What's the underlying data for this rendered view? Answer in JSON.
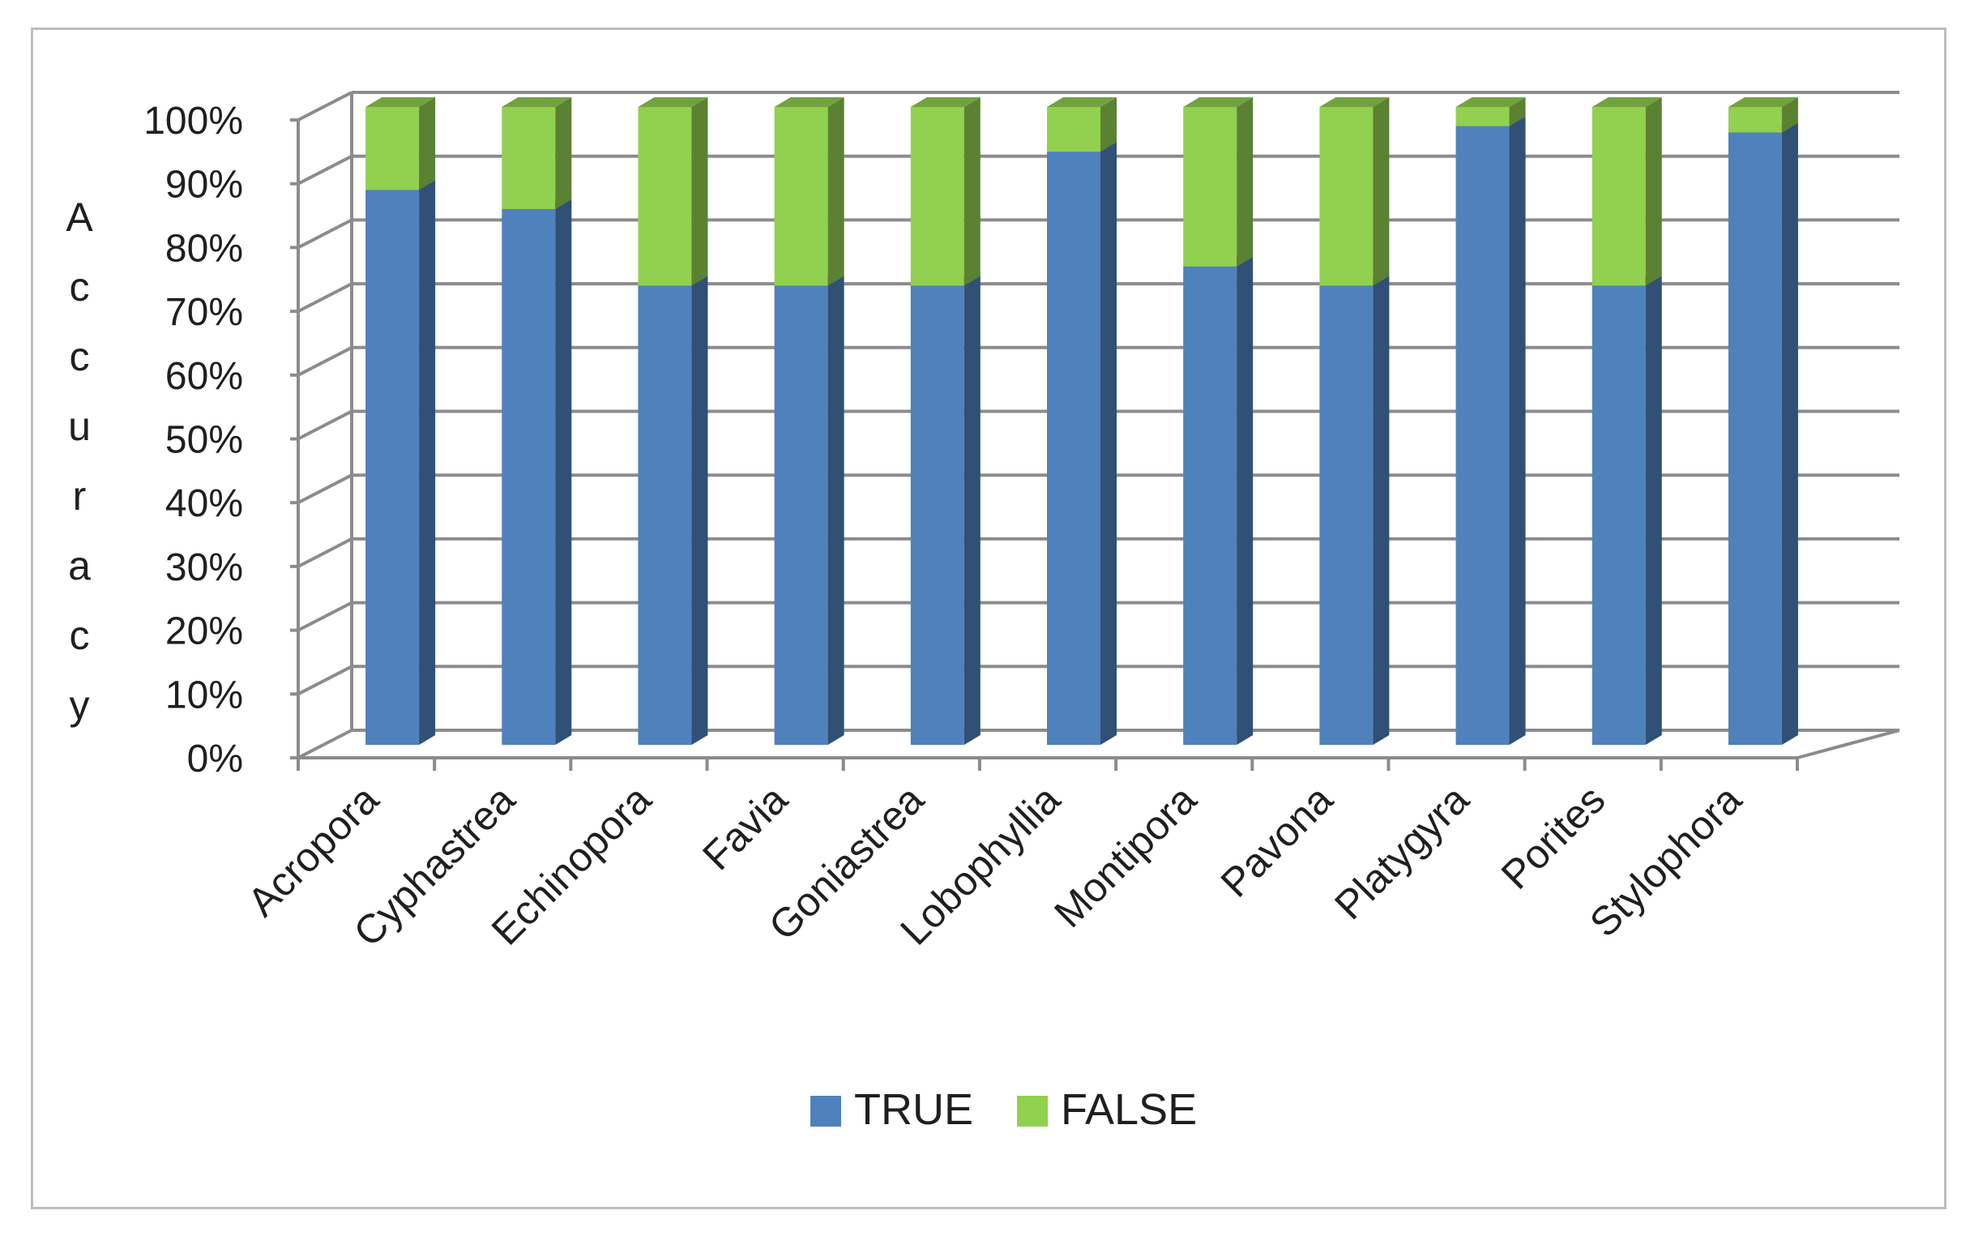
{
  "chart_data": {
    "type": "bar",
    "stacked": true,
    "three_d": true,
    "ylabel": "Accuracy",
    "ylim": [
      0,
      100
    ],
    "yticks": [
      "0%",
      "10%",
      "20%",
      "30%",
      "40%",
      "50%",
      "60%",
      "70%",
      "80%",
      "90%",
      "100%"
    ],
    "grid": true,
    "legend_position": "bottom",
    "categories": [
      "Acropora",
      "Cyphastrea",
      "Echinopora",
      "Favia",
      "Goniastrea",
      "Lobophyllia",
      "Montipora",
      "Pavona",
      "Platygyra",
      "Porites",
      "Stylophora"
    ],
    "series": [
      {
        "name": "TRUE",
        "color": "#4f81bd",
        "values": [
          87,
          84,
          72,
          72,
          72,
          93,
          75,
          72,
          97,
          72,
          96
        ]
      },
      {
        "name": "FALSE",
        "color": "#92d050",
        "values": [
          13,
          16,
          28,
          28,
          28,
          7,
          25,
          28,
          3,
          28,
          4
        ]
      }
    ]
  }
}
